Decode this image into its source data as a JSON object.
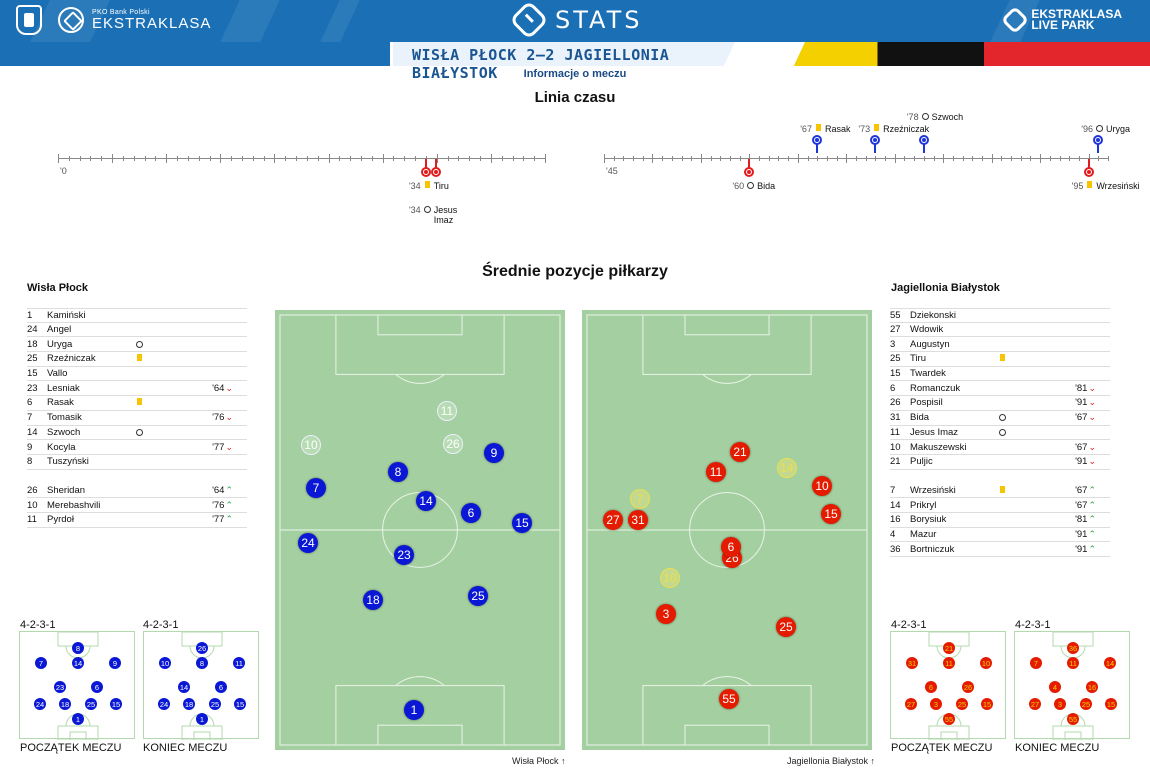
{
  "header": {
    "pko_small": "PKO Bank Polski",
    "league": "EKSTRAKLASA",
    "stats": "STATS",
    "live_line1": "EKSTRAKLASA",
    "live_line2": "LIVE PARK",
    "match_title": "WISŁA PŁOCK 2–2 JAGIELLONIA BIAŁYSTOK",
    "match_info": "Informacje o meczu",
    "brand_blue": "#1a6fb5"
  },
  "timeline": {
    "title": "Linia czasu",
    "half1_start": "'0",
    "half2_start": "'45",
    "events_top": [
      {
        "minute": "'67",
        "type": "yellow-card",
        "player": "Rasak",
        "team": "home"
      },
      {
        "minute": "'73",
        "type": "yellow-card",
        "player": "Rzeźniczak",
        "team": "home"
      },
      {
        "minute": "'78",
        "type": "goal",
        "player": "Szwoch",
        "team": "home"
      },
      {
        "minute": "'96",
        "type": "goal",
        "player": "Uryga",
        "team": "home"
      }
    ],
    "events_bottom": [
      {
        "minute": "'34",
        "type": "yellow-card",
        "player": "Tiru",
        "team": "away"
      },
      {
        "minute": "'34",
        "type": "goal",
        "player": "Jesus Imaz",
        "team": "away"
      },
      {
        "minute": "'60",
        "type": "goal",
        "player": "Bida",
        "team": "away"
      },
      {
        "minute": "'95",
        "type": "yellow-card",
        "player": "Wrzesiński",
        "team": "away"
      }
    ]
  },
  "positions_title": "Średnie pozycje piłkarzy",
  "home": {
    "name": "Wisła Płock",
    "color": "#0a18d6",
    "starters": [
      {
        "num": "1",
        "name": "Kamiński",
        "event": "",
        "sub": "",
        "dir": ""
      },
      {
        "num": "24",
        "name": "Angel",
        "event": "",
        "sub": "",
        "dir": ""
      },
      {
        "num": "18",
        "name": "Uryga",
        "event": "goal",
        "sub": "",
        "dir": ""
      },
      {
        "num": "25",
        "name": "Rzeźniczak",
        "event": "yellow-card",
        "sub": "",
        "dir": ""
      },
      {
        "num": "15",
        "name": "Vallo",
        "event": "",
        "sub": "",
        "dir": ""
      },
      {
        "num": "23",
        "name": "Lesniak",
        "event": "",
        "sub": "'64",
        "dir": "down"
      },
      {
        "num": "6",
        "name": "Rasak",
        "event": "yellow-card",
        "sub": "",
        "dir": ""
      },
      {
        "num": "7",
        "name": "Tomasik",
        "event": "",
        "sub": "'76",
        "dir": "down"
      },
      {
        "num": "14",
        "name": "Szwoch",
        "event": "goal",
        "sub": "",
        "dir": ""
      },
      {
        "num": "9",
        "name": "Kocyla",
        "event": "",
        "sub": "'77",
        "dir": "down"
      },
      {
        "num": "8",
        "name": "Tuszyński",
        "event": "",
        "sub": "",
        "dir": ""
      }
    ],
    "subs": [
      {
        "num": "26",
        "name": "Sheridan",
        "event": "",
        "sub": "'64",
        "dir": "up"
      },
      {
        "num": "10",
        "name": "Merebashvili",
        "event": "",
        "sub": "'76",
        "dir": "up"
      },
      {
        "num": "11",
        "name": "Pyrdoł",
        "event": "",
        "sub": "'77",
        "dir": "up"
      }
    ],
    "pitch_caption": "Wisła Płock",
    "formation_start": "4-2-3-1",
    "formation_end": "4-2-3-1",
    "label_start": "POCZĄTEK MECZU",
    "label_end": "KONIEC MECZU"
  },
  "away": {
    "name": "Jagiellonia Białystok",
    "color": "#e51b00",
    "starters": [
      {
        "num": "55",
        "name": "Dziekonski",
        "event": "",
        "sub": "",
        "dir": ""
      },
      {
        "num": "27",
        "name": "Wdowik",
        "event": "",
        "sub": "",
        "dir": ""
      },
      {
        "num": "3",
        "name": "Augustyn",
        "event": "",
        "sub": "",
        "dir": ""
      },
      {
        "num": "25",
        "name": "Tiru",
        "event": "yellow-card",
        "sub": "",
        "dir": ""
      },
      {
        "num": "15",
        "name": "Twardek",
        "event": "",
        "sub": "",
        "dir": ""
      },
      {
        "num": "6",
        "name": "Romanczuk",
        "event": "",
        "sub": "'81",
        "dir": "down"
      },
      {
        "num": "26",
        "name": "Pospisil",
        "event": "",
        "sub": "'91",
        "dir": "down"
      },
      {
        "num": "31",
        "name": "Bida",
        "event": "goal",
        "sub": "'67",
        "dir": "down"
      },
      {
        "num": "11",
        "name": "Jesus Imaz",
        "event": "goal",
        "sub": "",
        "dir": ""
      },
      {
        "num": "10",
        "name": "Makuszewski",
        "event": "",
        "sub": "'67",
        "dir": "down"
      },
      {
        "num": "21",
        "name": "Puljic",
        "event": "",
        "sub": "'91",
        "dir": "down"
      }
    ],
    "subs": [
      {
        "num": "7",
        "name": "Wrzesiński",
        "event": "yellow-card",
        "sub": "'67",
        "dir": "up"
      },
      {
        "num": "14",
        "name": "Prikryl",
        "event": "",
        "sub": "'67",
        "dir": "up"
      },
      {
        "num": "16",
        "name": "Borysiuk",
        "event": "",
        "sub": "'81",
        "dir": "up"
      },
      {
        "num": "4",
        "name": "Mazur",
        "event": "",
        "sub": "'91",
        "dir": "up"
      },
      {
        "num": "36",
        "name": "Bortniczuk",
        "event": "",
        "sub": "'91",
        "dir": "up"
      }
    ],
    "pitch_caption": "Jagiellonia Białystok",
    "formation_start": "4-2-3-1",
    "formation_end": "4-2-3-1",
    "label_start": "POCZĄTEK MECZU",
    "label_end": "KONIEC MECZU"
  },
  "home_pitch": [
    {
      "num": "11",
      "sub": true
    },
    {
      "num": "10",
      "sub": true
    },
    {
      "num": "26",
      "sub": true
    },
    {
      "num": "9",
      "sub": false
    },
    {
      "num": "8",
      "sub": false
    },
    {
      "num": "7",
      "sub": false
    },
    {
      "num": "14",
      "sub": false
    },
    {
      "num": "6",
      "sub": false
    },
    {
      "num": "15",
      "sub": false
    },
    {
      "num": "24",
      "sub": false
    },
    {
      "num": "23",
      "sub": false
    },
    {
      "num": "18",
      "sub": false
    },
    {
      "num": "25",
      "sub": false
    },
    {
      "num": "1",
      "sub": false
    }
  ],
  "away_pitch": [
    {
      "num": "21",
      "sub": false
    },
    {
      "num": "11",
      "sub": false
    },
    {
      "num": "14",
      "sub": true
    },
    {
      "num": "10",
      "sub": false
    },
    {
      "num": "7",
      "sub": true
    },
    {
      "num": "27",
      "sub": false
    },
    {
      "num": "31",
      "sub": false
    },
    {
      "num": "15",
      "sub": false
    },
    {
      "num": "26",
      "sub": false
    },
    {
      "num": "6",
      "sub": false
    },
    {
      "num": "16",
      "sub": true
    },
    {
      "num": "3",
      "sub": false
    },
    {
      "num": "25",
      "sub": false
    },
    {
      "num": "55",
      "sub": false
    }
  ],
  "mini_home_start": [
    "8",
    "7",
    "14",
    "9",
    "23",
    "6",
    "24",
    "18",
    "25",
    "15",
    "1"
  ],
  "mini_home_end": [
    "26",
    "10",
    "8",
    "11",
    "14",
    "6",
    "24",
    "18",
    "25",
    "15",
    "1"
  ],
  "mini_away_start": [
    "21",
    "31",
    "11",
    "10",
    "6",
    "26",
    "27",
    "3",
    "25",
    "15",
    "55"
  ],
  "mini_away_end": [
    "36",
    "7",
    "11",
    "14",
    "4",
    "16",
    "27",
    "3",
    "25",
    "15",
    "55"
  ]
}
